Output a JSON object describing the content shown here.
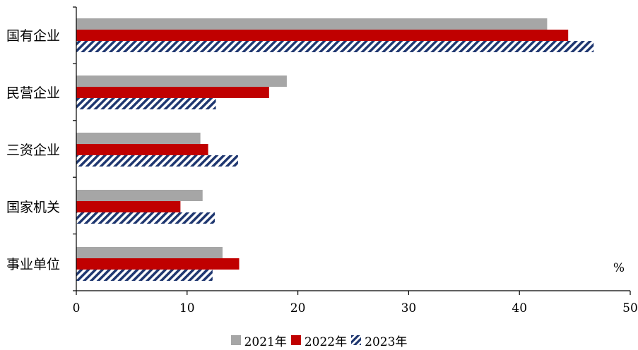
{
  "chart_data": {
    "type": "bar",
    "orientation": "horizontal",
    "categories": [
      "国有企业",
      "民营企业",
      "三资企业",
      "国家机关",
      "事业单位"
    ],
    "series": [
      {
        "name": "2021年",
        "values": [
          42.5,
          19.0,
          11.2,
          11.4,
          13.2
        ],
        "color": "#a6a6a6",
        "pattern": "solid"
      },
      {
        "name": "2022年",
        "values": [
          44.4,
          17.4,
          11.9,
          9.4,
          14.7
        ],
        "color": "#c00000",
        "pattern": "solid"
      },
      {
        "name": "2023年",
        "values": [
          46.7,
          12.6,
          14.6,
          12.5,
          12.3
        ],
        "color": "#1f3770",
        "pattern": "diagonal-hatch"
      }
    ],
    "xlim": [
      0,
      50
    ],
    "xticks": [
      0,
      10,
      20,
      30,
      40,
      50
    ],
    "unit": "%",
    "legend_position": "bottom",
    "grid": false
  }
}
